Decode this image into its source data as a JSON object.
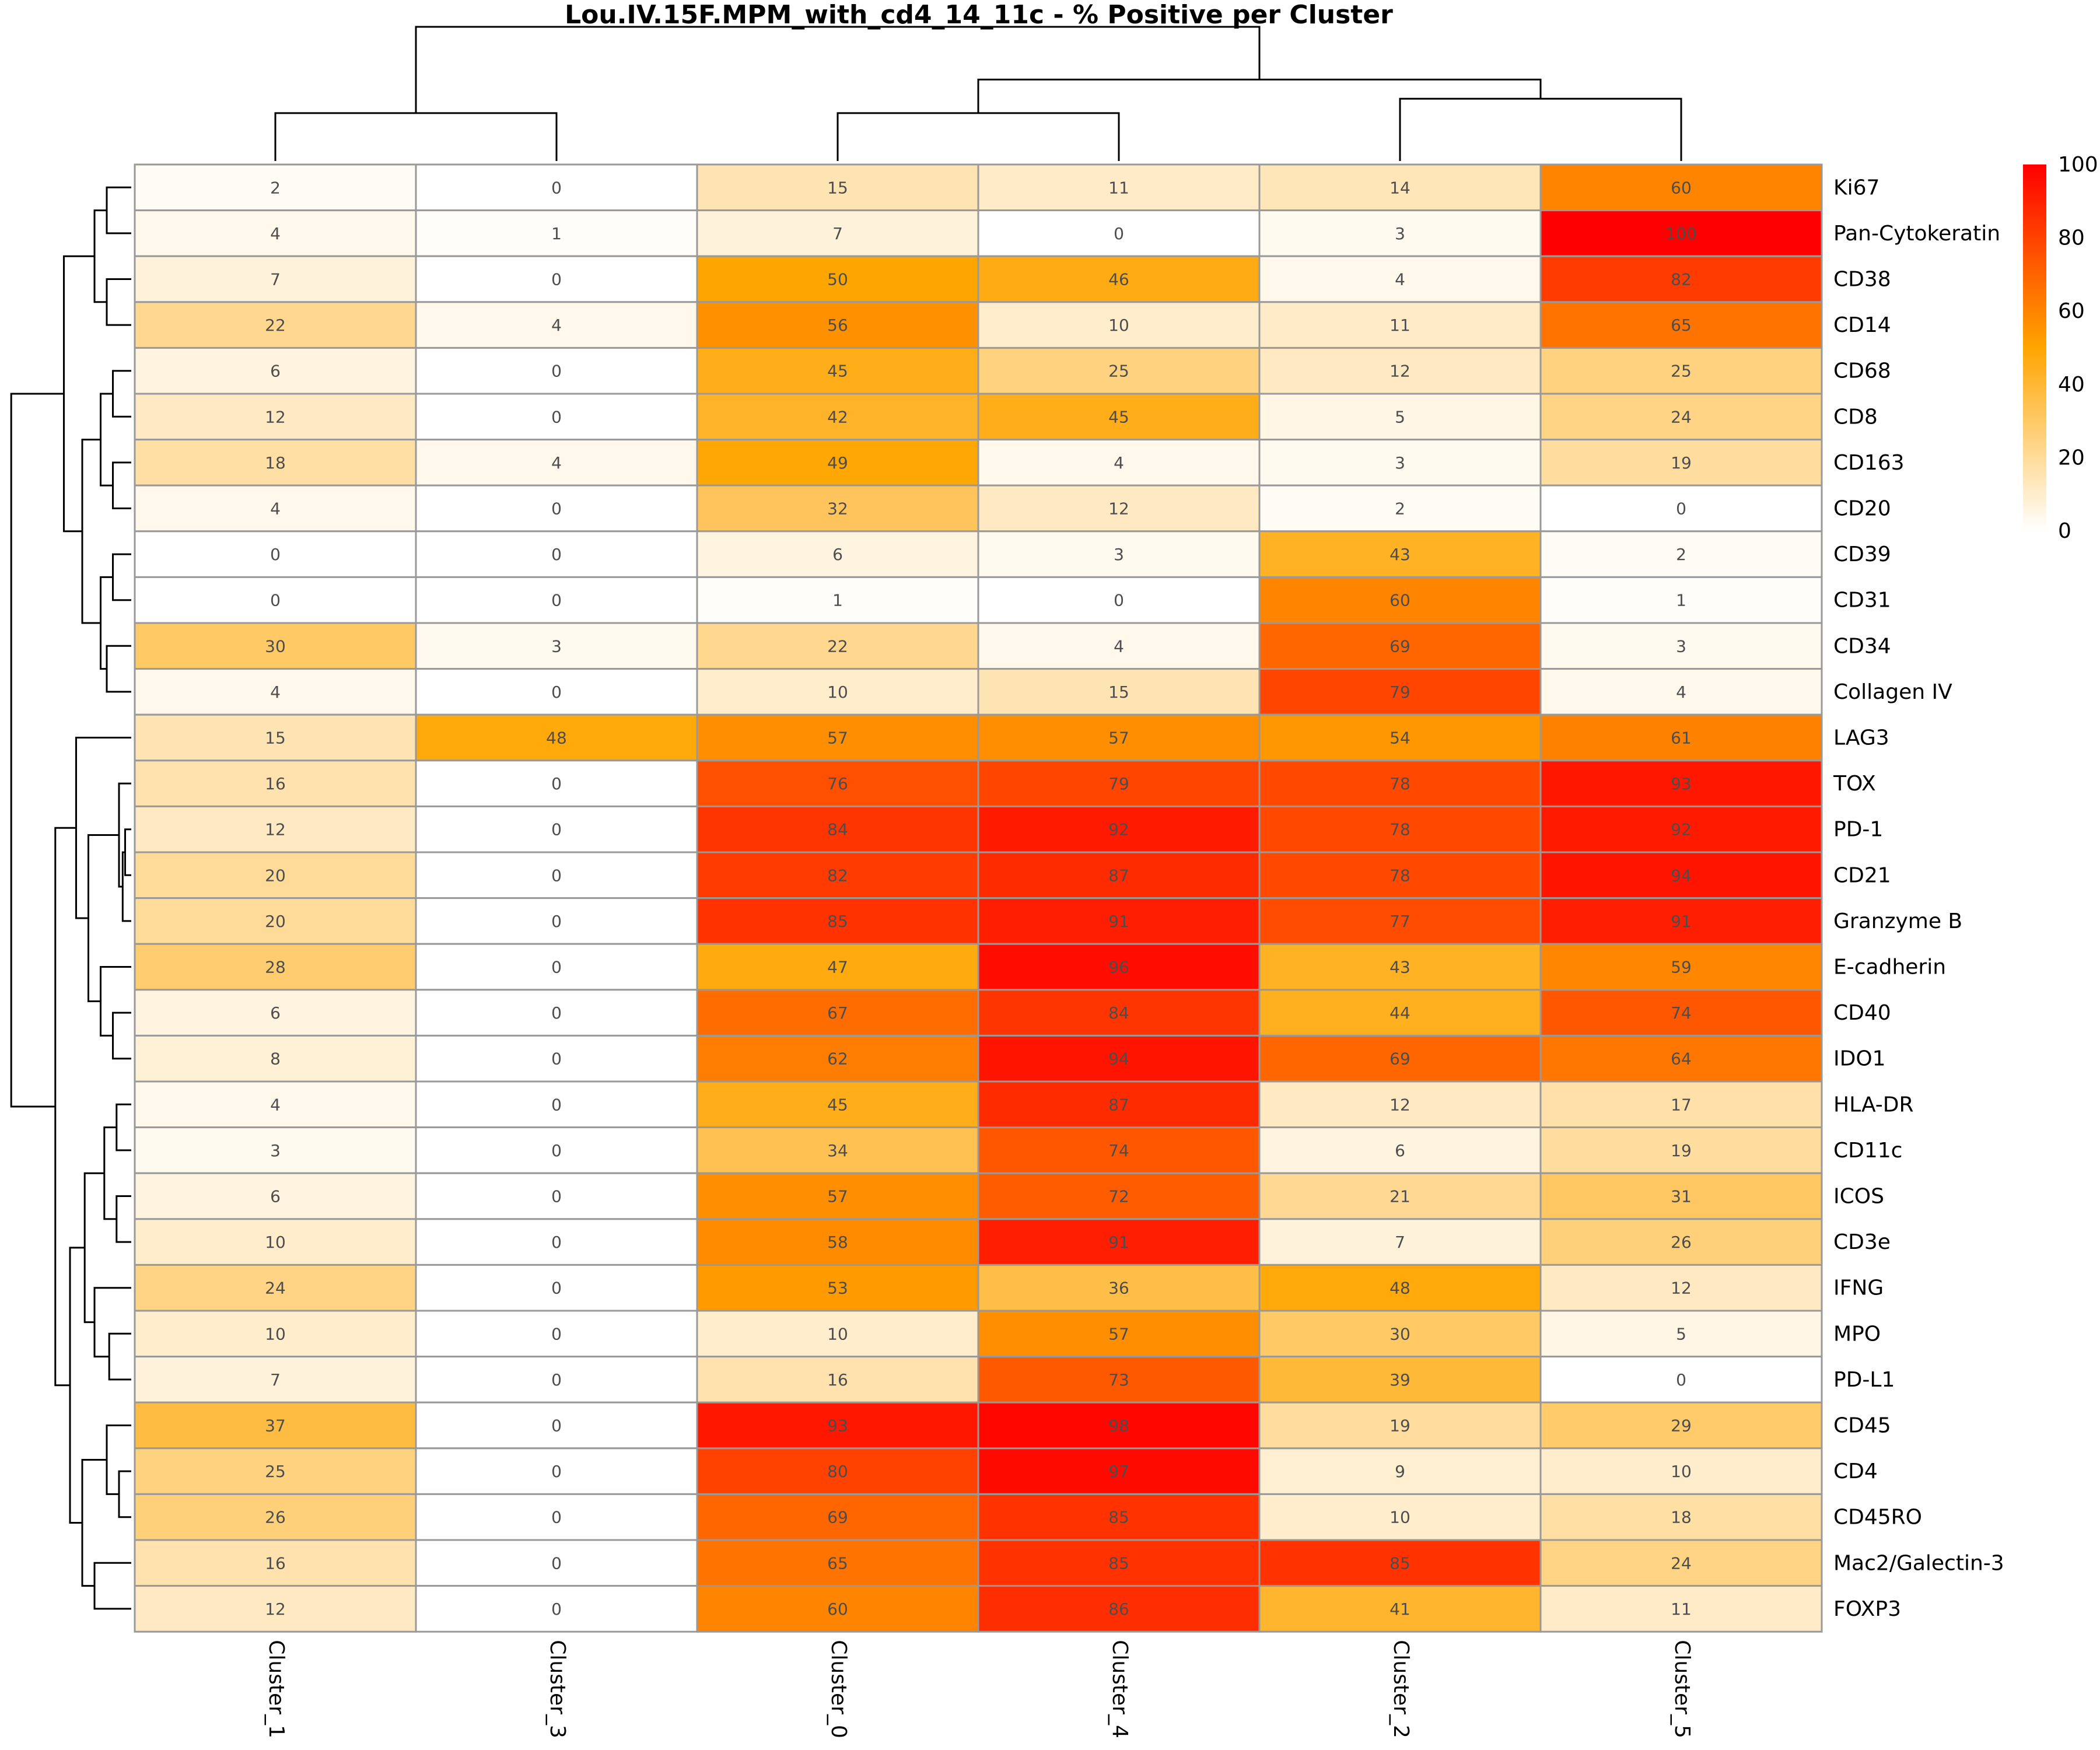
{
  "chart_data": {
    "type": "heatmap",
    "title": "Lou.IV.15F.MPM_with_cd4_14_11c - % Positive per Cluster",
    "xlabel": "",
    "ylabel": "",
    "columns": [
      "Cluster_1",
      "Cluster_3",
      "Cluster_0",
      "Cluster_4",
      "Cluster_2",
      "Cluster_5"
    ],
    "rows": [
      "Ki67",
      "Pan-Cytokeratin",
      "CD38",
      "CD14",
      "CD68",
      "CD8",
      "CD163",
      "CD20",
      "CD39",
      "CD31",
      "CD34",
      "Collagen IV",
      "LAG3",
      "TOX",
      "PD-1",
      "CD21",
      "Granzyme B",
      "E-cadherin",
      "CD40",
      "IDO1",
      "HLA-DR",
      "CD11c",
      "ICOS",
      "CD3e",
      "IFNG",
      "MPO",
      "PD-L1",
      "CD45",
      "CD4",
      "CD45RO",
      "Mac2/Galectin-3",
      "FOXP3"
    ],
    "values": [
      [
        2,
        0,
        15,
        11,
        14,
        60
      ],
      [
        4,
        1,
        7,
        0,
        3,
        100
      ],
      [
        7,
        0,
        50,
        46,
        4,
        82
      ],
      [
        22,
        4,
        56,
        10,
        11,
        65
      ],
      [
        6,
        0,
        45,
        25,
        12,
        25
      ],
      [
        12,
        0,
        42,
        45,
        5,
        24
      ],
      [
        18,
        4,
        49,
        4,
        3,
        19
      ],
      [
        4,
        0,
        32,
        12,
        2,
        0
      ],
      [
        0,
        0,
        6,
        3,
        43,
        2
      ],
      [
        0,
        0,
        1,
        0,
        60,
        1
      ],
      [
        30,
        3,
        22,
        4,
        69,
        3
      ],
      [
        4,
        0,
        10,
        15,
        79,
        4
      ],
      [
        15,
        48,
        57,
        57,
        54,
        61
      ],
      [
        16,
        0,
        76,
        79,
        78,
        93
      ],
      [
        12,
        0,
        84,
        92,
        78,
        92
      ],
      [
        20,
        0,
        82,
        87,
        78,
        94
      ],
      [
        20,
        0,
        85,
        91,
        77,
        91
      ],
      [
        28,
        0,
        47,
        96,
        43,
        59
      ],
      [
        6,
        0,
        67,
        84,
        44,
        74
      ],
      [
        8,
        0,
        62,
        94,
        69,
        64
      ],
      [
        4,
        0,
        45,
        87,
        12,
        17
      ],
      [
        3,
        0,
        34,
        74,
        6,
        19
      ],
      [
        6,
        0,
        57,
        72,
        21,
        31
      ],
      [
        10,
        0,
        58,
        91,
        7,
        26
      ],
      [
        24,
        0,
        53,
        36,
        48,
        12
      ],
      [
        10,
        0,
        10,
        57,
        30,
        5
      ],
      [
        7,
        0,
        16,
        73,
        39,
        0
      ],
      [
        37,
        0,
        93,
        98,
        19,
        29
      ],
      [
        25,
        0,
        80,
        97,
        9,
        10
      ],
      [
        26,
        0,
        69,
        85,
        10,
        18
      ],
      [
        16,
        0,
        65,
        85,
        85,
        24
      ],
      [
        12,
        0,
        60,
        86,
        41,
        11
      ]
    ],
    "color_range": [
      0,
      100
    ],
    "colormap": [
      "#ffffff",
      "#ffa500",
      "#ff0000"
    ],
    "legend_ticks": [
      0,
      20,
      40,
      60,
      80,
      100
    ],
    "legend_position": "top-right",
    "column_dendrogram": {
      "merges": [
        [
          0,
          1
        ],
        [
          2,
          3
        ],
        [
          4,
          5
        ],
        [
          -2,
          -3
        ],
        [
          -1,
          -4
        ]
      ],
      "heights": [
        0.2,
        0.2,
        0.26,
        0.34,
        0.56
      ]
    },
    "row_dendrogram_shown": true
  },
  "colors": {
    "cell_border": "#999999",
    "text": "#4d4d4d",
    "dendrogram": "#000000"
  }
}
